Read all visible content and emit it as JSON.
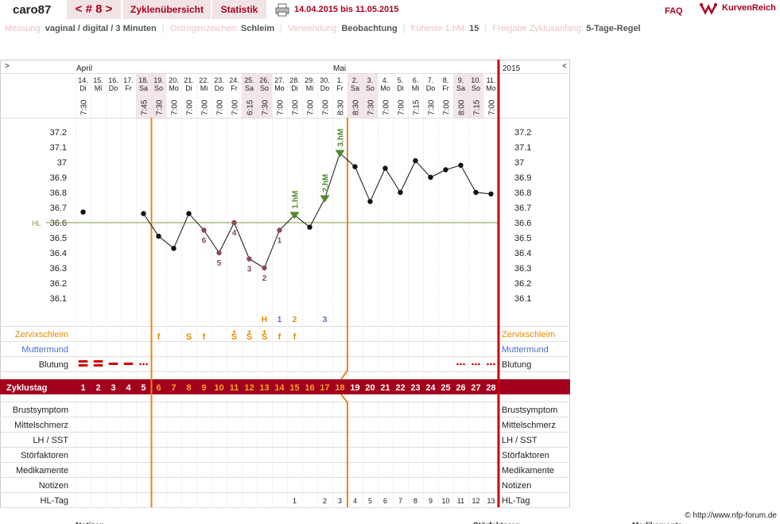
{
  "topbar": {
    "user": "caro87",
    "cycle_nav": "< # 8 >",
    "tab_overview": "Zyklenübersicht",
    "tab_stats": "Statistik",
    "date_range": "14.04.2015 bis 11.05.2015",
    "faq": "FAQ",
    "brand": "KurvenReich",
    "print_icon": "printer-icon"
  },
  "info": {
    "messung_label": "Messung:",
    "messung_value": "vaginal / digital / 3 Minuten",
    "oestrogen_label": "Östrogenzeichen:",
    "oestrogen_value": "Schleim",
    "verwendung_label": "Verwendung:",
    "verwendung_value": "Beobachtung",
    "frueheste_label": "früheste 1.hM:",
    "frueheste_value": "15",
    "freigabe_label": "Freigabe Zyklusanfang:",
    "freigabe_value": "5-Tage-Regel"
  },
  "months": {
    "april": "April",
    "mai": "Mai",
    "year": "2015",
    "nav_left": ">",
    "nav_right": "<"
  },
  "days": [
    {
      "d": "14.",
      "w": "Di",
      "t": "7:30",
      "we": false
    },
    {
      "d": "15.",
      "w": "Mi",
      "t": "",
      "we": false
    },
    {
      "d": "16.",
      "w": "Do",
      "t": "",
      "we": false
    },
    {
      "d": "17.",
      "w": "Fr",
      "t": "",
      "we": false
    },
    {
      "d": "18.",
      "w": "Sa",
      "t": "7:45",
      "we": true
    },
    {
      "d": "19.",
      "w": "So",
      "t": "7:30",
      "we": true
    },
    {
      "d": "20.",
      "w": "Mo",
      "t": "7:00",
      "we": false
    },
    {
      "d": "21.",
      "w": "Di",
      "t": "7:00",
      "we": false
    },
    {
      "d": "22.",
      "w": "Mi",
      "t": "7:00",
      "we": false
    },
    {
      "d": "23.",
      "w": "Do",
      "t": "7:00",
      "we": false
    },
    {
      "d": "24.",
      "w": "Fr",
      "t": "7:00",
      "we": false
    },
    {
      "d": "25.",
      "w": "Sa",
      "t": "6:15",
      "we": true
    },
    {
      "d": "26.",
      "w": "So",
      "t": "7:30",
      "we": true
    },
    {
      "d": "27.",
      "w": "Mo",
      "t": "7:00",
      "we": false
    },
    {
      "d": "28.",
      "w": "Di",
      "t": "7:00",
      "we": false
    },
    {
      "d": "29.",
      "w": "Mi",
      "t": "7:00",
      "we": false
    },
    {
      "d": "30.",
      "w": "Do",
      "t": "7:00",
      "we": false
    },
    {
      "d": "1.",
      "w": "Fr",
      "t": "8:30",
      "we": false
    },
    {
      "d": "2.",
      "w": "Sa",
      "t": "8:30",
      "we": true
    },
    {
      "d": "3.",
      "w": "So",
      "t": "7:30",
      "we": true
    },
    {
      "d": "4.",
      "w": "Mo",
      "t": "7:00",
      "we": false
    },
    {
      "d": "5.",
      "w": "Di",
      "t": "7:00",
      "we": false
    },
    {
      "d": "6.",
      "w": "Mi",
      "t": "7:15",
      "we": false
    },
    {
      "d": "7.",
      "w": "Do",
      "t": "7:30",
      "we": false
    },
    {
      "d": "8.",
      "w": "Fr",
      "t": "7:00",
      "we": false
    },
    {
      "d": "9.",
      "w": "Sa",
      "t": "8:00",
      "we": true
    },
    {
      "d": "10.",
      "w": "So",
      "t": "7:15",
      "we": true
    },
    {
      "d": "11.",
      "w": "Mo",
      "t": "7:00",
      "we": false
    }
  ],
  "chart_data": {
    "type": "line",
    "ylim": [
      36.0,
      37.3
    ],
    "yticks": [
      "37.2",
      "37.1",
      "37",
      "36.9",
      "36.8",
      "36.7",
      "36.6",
      "36.5",
      "36.4",
      "36.3",
      "36.2",
      "36.1"
    ],
    "coverline_label": "HL",
    "coverline": 36.6,
    "temps": [
      36.67,
      null,
      null,
      null,
      36.66,
      36.51,
      36.43,
      36.66,
      36.55,
      36.4,
      36.6,
      36.36,
      36.3,
      36.55,
      36.65,
      36.57,
      36.76,
      37.06,
      36.97,
      36.74,
      36.96,
      36.8,
      37.01,
      36.9,
      36.95,
      36.98,
      36.8,
      36.79
    ],
    "low_labels": [
      {
        "day": 9,
        "label": "6"
      },
      {
        "day": 10,
        "label": "5"
      },
      {
        "day": 11,
        "label": "4"
      },
      {
        "day": 12,
        "label": "3"
      },
      {
        "day": 13,
        "label": "2"
      },
      {
        "day": 14,
        "label": "1"
      }
    ],
    "high_labels": [
      {
        "day": 15,
        "label": "1.hM"
      },
      {
        "day": 17,
        "label": "2.hM"
      },
      {
        "day": 18,
        "label": "3.hM"
      }
    ],
    "peak_labels": [
      {
        "day": 13,
        "label": "H",
        "color": "#e58a00"
      },
      {
        "day": 14,
        "label": "1",
        "color": "#4a6cc9"
      },
      {
        "day": 15,
        "label": "2",
        "color": "#e58a00"
      },
      {
        "day": 17,
        "label": "3",
        "color": "#4a6cc9"
      }
    ]
  },
  "rows": {
    "zervix": "Zervixschleim",
    "muttermund": "Muttermund",
    "blutung": "Blutung",
    "zyklustag": "Zyklustag",
    "brust": "Brustsymptom",
    "mittel": "Mittelschmerz",
    "lh": "LH / SST",
    "stoer": "Störfaktoren",
    "medi": "Medikamente",
    "notizen": "Notizen",
    "hltag": "HL-Tag"
  },
  "zervix_marks": [
    {
      "day": 6,
      "s": "f"
    },
    {
      "day": 8,
      "s": "S"
    },
    {
      "day": 9,
      "s": "f"
    },
    {
      "day": 11,
      "s": "S+"
    },
    {
      "day": 12,
      "s": "S+"
    },
    {
      "day": 13,
      "s": "S+"
    },
    {
      "day": 14,
      "s": "f"
    },
    {
      "day": 15,
      "s": "f"
    }
  ],
  "blutung_marks": [
    {
      "day": 1,
      "k": "heavy"
    },
    {
      "day": 2,
      "k": "heavy"
    },
    {
      "day": 3,
      "k": "medium"
    },
    {
      "day": 4,
      "k": "medium"
    },
    {
      "day": 5,
      "k": "dots"
    },
    {
      "day": 26,
      "k": "dots"
    },
    {
      "day": 27,
      "k": "dots"
    },
    {
      "day": 28,
      "k": "dots"
    }
  ],
  "hltag": [
    "",
    "",
    "",
    "",
    "",
    "",
    "",
    "",
    "",
    "",
    "",
    "",
    "",
    "",
    "1",
    "",
    "2",
    "3",
    "4",
    "5",
    "6",
    "7",
    "8",
    "9",
    "10",
    "11",
    "12",
    "13"
  ],
  "footer": {
    "copyright": "© http://www.nfp-forum.de",
    "notizen": "Notizen",
    "stoer": "Störfaktoren",
    "medi": "Medikamente"
  }
}
